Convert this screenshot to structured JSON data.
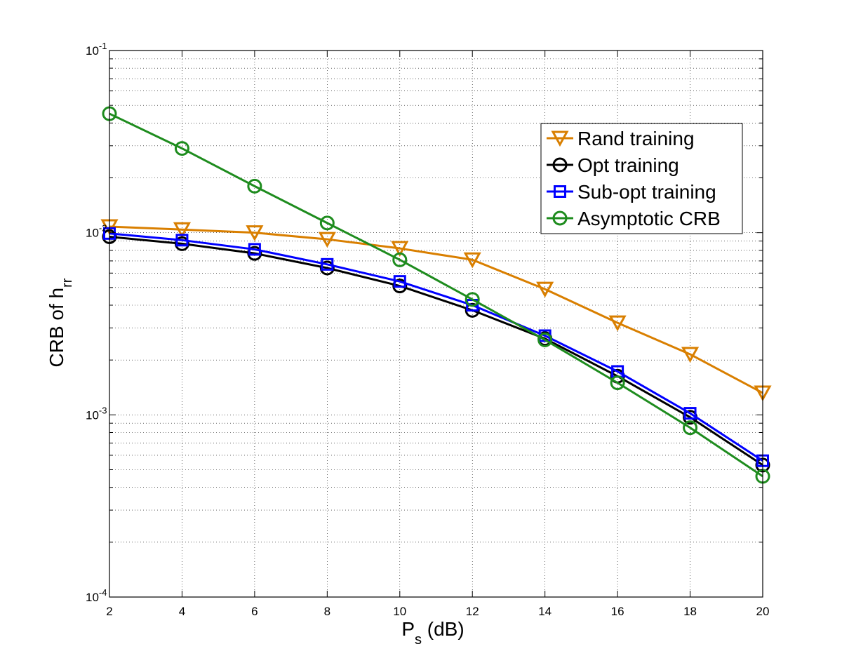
{
  "chart_data": {
    "type": "line",
    "title": "",
    "xlabel": {
      "main": "P",
      "sub": "s",
      "suffix": " (dB)"
    },
    "ylabel": {
      "main": "CRB of h",
      "sub": "rr"
    },
    "xlim": [
      2,
      20
    ],
    "ylim": [
      0.0001,
      0.1
    ],
    "yscale": "log",
    "grid": true,
    "legend_position": "top-right",
    "x_ticks": [
      2,
      4,
      6,
      8,
      10,
      12,
      14,
      16,
      18,
      20
    ],
    "x_tick_labels": [
      "2",
      "4",
      "6",
      "8",
      "10",
      "12",
      "14",
      "16",
      "18",
      "20"
    ],
    "y_ticks": [
      0.0001,
      0.001,
      0.01,
      0.1
    ],
    "y_tick_labels": [
      {
        "base": "10",
        "exp": "-4"
      },
      {
        "base": "10",
        "exp": "-3"
      },
      {
        "base": "10",
        "exp": "-2"
      },
      {
        "base": "10",
        "exp": "-1"
      }
    ],
    "x": [
      2,
      4,
      6,
      8,
      10,
      12,
      14,
      16,
      18,
      20
    ],
    "series": [
      {
        "name": "Rand training",
        "color": "#d97f00",
        "marker": "triangle-down",
        "values": [
          0.0108,
          0.0104,
          0.01,
          0.0092,
          0.0082,
          0.0071,
          0.0049,
          0.0032,
          0.00215,
          0.00132
        ]
      },
      {
        "name": "Opt training",
        "color": "#000000",
        "marker": "circle",
        "values": [
          0.0095,
          0.0087,
          0.0077,
          0.0064,
          0.0051,
          0.00375,
          0.00262,
          0.00163,
          0.00097,
          0.00053
        ]
      },
      {
        "name": "Sub-opt training",
        "color": "#0000ff",
        "marker": "square",
        "values": [
          0.0099,
          0.0091,
          0.0081,
          0.0067,
          0.0054,
          0.004,
          0.00272,
          0.00173,
          0.00102,
          0.00056
        ]
      },
      {
        "name": "Asymptotic CRB",
        "color": "#1e8c1e",
        "marker": "circle",
        "values": [
          0.045,
          0.029,
          0.018,
          0.0113,
          0.0071,
          0.0043,
          0.00258,
          0.0015,
          0.00085,
          0.00046
        ]
      }
    ]
  }
}
